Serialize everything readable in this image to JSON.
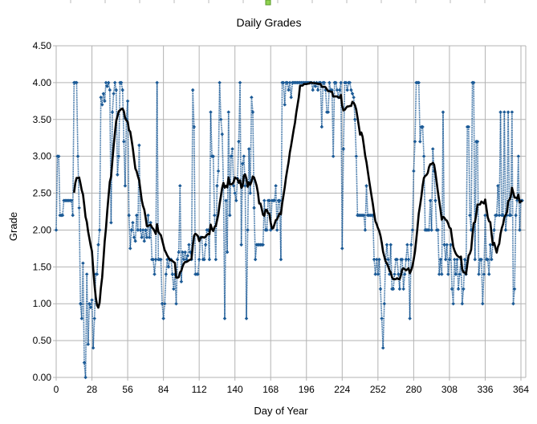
{
  "chart_data": {
    "type": "line",
    "title": "Daily Grades",
    "xlabel": "Day of Year",
    "ylabel": "Grade",
    "xlim": [
      0,
      364
    ],
    "ylim": [
      0,
      4.5
    ],
    "x_ticks": [
      "0",
      "28",
      "56",
      "84",
      "112",
      "140",
      "168",
      "196",
      "224",
      "252",
      "280",
      "308",
      "336",
      "364"
    ],
    "y_ticks": [
      "0.00",
      "0.50",
      "1.00",
      "1.50",
      "2.00",
      "2.50",
      "3.00",
      "3.50",
      "4.00",
      "4.50"
    ],
    "grid": true,
    "legend": "none",
    "series": [
      {
        "style": "dotted line with markers",
        "color": "#1b5a96",
        "values": [
          2.0,
          3.0,
          3.0,
          2.2,
          2.2,
          2.2,
          2.4,
          2.4,
          2.4,
          2.4,
          2.4,
          2.4,
          2.4,
          2.2,
          4.0,
          4.0,
          4.0,
          3.0,
          2.3,
          1.0,
          0.8,
          1.55,
          0.2,
          0.0,
          1.4,
          0.45,
          1.0,
          0.95,
          1.05,
          0.4,
          0.8,
          1.4,
          1.4,
          1.8,
          2.0,
          3.8,
          3.7,
          3.85,
          3.75,
          4.0,
          3.95,
          4.0,
          3.9,
          2.1,
          3.6,
          3.85,
          4.0,
          3.9,
          2.75,
          3.0,
          4.0,
          4.0,
          3.9,
          3.2,
          2.6,
          3.5,
          3.75,
          2.2,
          1.75,
          2.0,
          2.1,
          1.9,
          1.85,
          2.2,
          2.0,
          3.15,
          2.0,
          1.9,
          2.0,
          1.85,
          2.0,
          1.9,
          2.2,
          1.9,
          2.1,
          1.6,
          1.6,
          1.4,
          1.6,
          4.0,
          1.6,
          1.6,
          1.6,
          1.0,
          0.8,
          1.0,
          1.4,
          1.6,
          1.5,
          1.6,
          1.6,
          1.4,
          1.2,
          1.4,
          1.0,
          1.6,
          1.7,
          2.6,
          1.3,
          1.7,
          1.6,
          1.7,
          1.6,
          1.65,
          1.8,
          1.7,
          1.6,
          3.9,
          3.4,
          1.4,
          1.4,
          1.4,
          1.6,
          1.9,
          1.9,
          1.6,
          1.6,
          1.8,
          2.0,
          2.0,
          1.6,
          3.6,
          3.0,
          3.0,
          2.2,
          1.6,
          2.6,
          2.8,
          4.0,
          3.5,
          3.3,
          2.6,
          0.8,
          2.4,
          1.7,
          3.6,
          2.2,
          3.0,
          3.1,
          2.6,
          2.5,
          2.4,
          2.7,
          3.2,
          4.0,
          1.8,
          2.9,
          3.0,
          2.6,
          0.8,
          2.0,
          3.1,
          2.5,
          3.8,
          3.6,
          2.3,
          1.6,
          1.8,
          1.8,
          1.8,
          1.8,
          1.8,
          1.8,
          2.4,
          2.0,
          2.0,
          2.4,
          2.4,
          2.0,
          2.4,
          2.4,
          2.4,
          2.6,
          2.0,
          2.4,
          2.4,
          1.6,
          4.0,
          4.0,
          3.7,
          4.0,
          4.0,
          3.9,
          4.0,
          3.8,
          4.0,
          4.0,
          4.0,
          4.0,
          4.0,
          4.0,
          4.0,
          4.0,
          4.0,
          4.0,
          4.0,
          4.0,
          4.0,
          4.0,
          4.0,
          4.0,
          3.9,
          4.0,
          3.95,
          4.0,
          3.9,
          4.0,
          4.0,
          3.4,
          4.0,
          4.0,
          3.9,
          3.6,
          3.6,
          4.0,
          3.9,
          3.9,
          3.0,
          4.0,
          4.0,
          3.9,
          3.8,
          3.9,
          4.0,
          1.75,
          3.1,
          4.0,
          4.0,
          3.9,
          4.0,
          4.0,
          3.9,
          3.85,
          3.8,
          3.5,
          3.0,
          2.2,
          2.2,
          2.2,
          2.2,
          2.2,
          2.2,
          2.0,
          2.6,
          2.2,
          2.2,
          2.2,
          2.2,
          2.2,
          1.6,
          1.4,
          1.6,
          1.4,
          1.6,
          1.2,
          0.8,
          0.4,
          1.0,
          1.6,
          1.8,
          1.6,
          1.4,
          1.8,
          1.2,
          1.2,
          1.4,
          1.6,
          1.6,
          1.4,
          1.2,
          1.6,
          1.6,
          1.2,
          1.4,
          1.6,
          1.8,
          1.6,
          0.8,
          1.8,
          2.0,
          2.8,
          3.2,
          4.0,
          4.0,
          4.0,
          3.2,
          3.4,
          3.4,
          3.0,
          2.0,
          2.0,
          2.0,
          2.0,
          2.4,
          2.0,
          3.1,
          2.8,
          2.4,
          2.0,
          2.0,
          1.4,
          1.6,
          1.4,
          3.6,
          1.8,
          1.6,
          1.8,
          1.4,
          1.6,
          1.8,
          1.2,
          1.0,
          1.6,
          1.4,
          1.6,
          1.2,
          1.4,
          1.6,
          1.0,
          1.2,
          1.6,
          1.4,
          3.4,
          3.4,
          2.2,
          2.0,
          4.0,
          4.0,
          1.6,
          3.2,
          3.2,
          1.4,
          1.6,
          1.6,
          1.0,
          1.4,
          2.2,
          1.6,
          1.6,
          1.4,
          1.8,
          1.6,
          1.8,
          2.0,
          2.2,
          2.2,
          2.6,
          2.2,
          3.6,
          2.2,
          2.2,
          3.6,
          2.0,
          2.2,
          3.6,
          2.2,
          2.2,
          3.6,
          1.0,
          1.2,
          2.2,
          2.4,
          3.0,
          2.0,
          2.4,
          2.4
        ]
      },
      {
        "style": "moving average trendline",
        "color": "#000000",
        "period": 15
      }
    ]
  }
}
